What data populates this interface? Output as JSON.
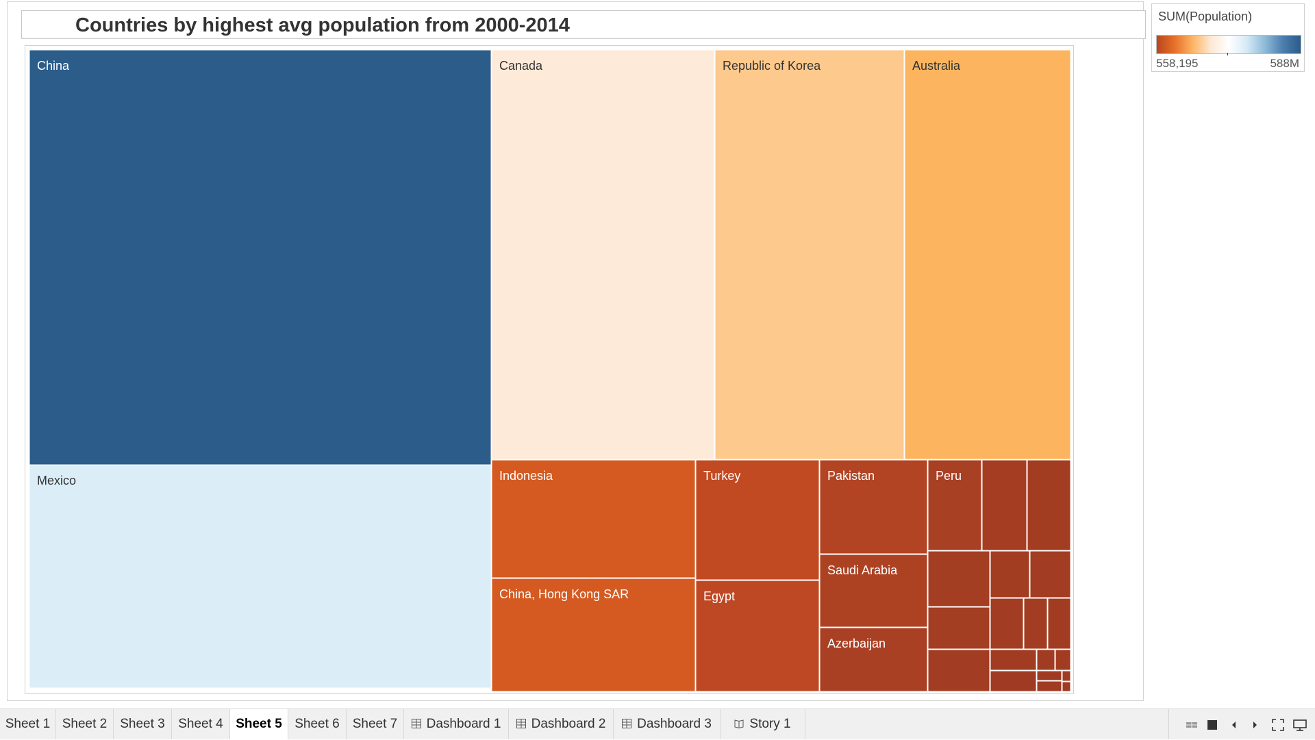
{
  "chart_data": {
    "type": "treemap",
    "title": "Countries by highest avg population from 2000-2014",
    "color_legend": {
      "title": "SUM(Population)",
      "min_label": "558,195",
      "max_label": "588M",
      "palette": [
        "#b8461c",
        "#e8702a",
        "#fdb462",
        "#fde8d4",
        "#ffffff",
        "#d6eaf6",
        "#8fbbd9",
        "#4c7fae",
        "#2b5c8a"
      ]
    },
    "items": [
      {
        "label": "China",
        "color": "#2b5c8a"
      },
      {
        "label": "Mexico",
        "color": "#dbeef8"
      },
      {
        "label": "Canada",
        "color": "#feead8"
      },
      {
        "label": "Republic of Korea",
        "color": "#fec98c"
      },
      {
        "label": "Australia",
        "color": "#fcb55e"
      },
      {
        "label": "Indonesia",
        "color": "#d45a22"
      },
      {
        "label": "China, Hong Kong SAR",
        "color": "#d45a22"
      },
      {
        "label": "Turkey",
        "color": "#c14a22"
      },
      {
        "label": "Egypt",
        "color": "#bd4823"
      },
      {
        "label": "Pakistan",
        "color": "#b24423"
      },
      {
        "label": "Saudi Arabia",
        "color": "#ad4223"
      },
      {
        "label": "Azerbaijan",
        "color": "#a94023"
      },
      {
        "label": "Peru",
        "color": "#a84023"
      },
      {
        "label": "",
        "color": "#a43d22"
      },
      {
        "label": "",
        "color": "#a33d22"
      },
      {
        "label": "",
        "color": "#a43e22"
      },
      {
        "label": "",
        "color": "#a33d22"
      },
      {
        "label": "",
        "color": "#a23c22"
      },
      {
        "label": "",
        "color": "#a43e22"
      },
      {
        "label": "",
        "color": "#a23c22"
      },
      {
        "label": "",
        "color": "#a23c22"
      },
      {
        "label": "",
        "color": "#a13b22"
      },
      {
        "label": "",
        "color": "#a23c22"
      },
      {
        "label": "",
        "color": "#a13b22"
      },
      {
        "label": "",
        "color": "#a13b22"
      },
      {
        "label": "",
        "color": "#a13b22"
      },
      {
        "label": "",
        "color": "#a03a22"
      },
      {
        "label": "",
        "color": "#a03a22"
      },
      {
        "label": "",
        "color": "#a03a22"
      },
      {
        "label": "",
        "color": "#a03a22"
      },
      {
        "label": "",
        "color": "#a03a22"
      }
    ]
  },
  "tabs": [
    {
      "label": "Sheet 1",
      "icon": "none"
    },
    {
      "label": "Sheet 2",
      "icon": "none"
    },
    {
      "label": "Sheet 3",
      "icon": "none"
    },
    {
      "label": "Sheet 4",
      "icon": "none"
    },
    {
      "label": "Sheet 5",
      "icon": "none",
      "active": true
    },
    {
      "label": "Sheet 6",
      "icon": "none"
    },
    {
      "label": "Sheet 7",
      "icon": "none"
    },
    {
      "label": "Dashboard 1",
      "icon": "dashboard-grid-icon"
    },
    {
      "label": "Dashboard 2",
      "icon": "dashboard-grid-icon"
    },
    {
      "label": "Dashboard 3",
      "icon": "dashboard-grid-icon"
    },
    {
      "label": "Story 1",
      "icon": "story-book-icon"
    }
  ],
  "nav_icons": [
    "sheet-sorter-icon",
    "filmstrip-icon",
    "previous-icon",
    "next-icon",
    "presentation-mode-icon",
    "device-preview-icon"
  ]
}
